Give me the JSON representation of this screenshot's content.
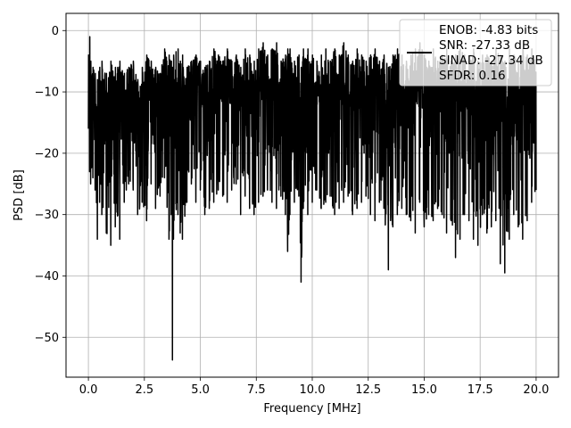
{
  "chart_data": {
    "type": "line",
    "title": "",
    "xlabel": "Frequency [MHz]",
    "ylabel": "PSD [dB]",
    "xlim": [
      -1.0,
      21.0
    ],
    "ylim": [
      -56.5,
      2.8
    ],
    "xticks": [
      0.0,
      2.5,
      5.0,
      7.5,
      10.0,
      12.5,
      15.0,
      17.5,
      20.0
    ],
    "xtick_labels": [
      "0.0",
      "2.5",
      "5.0",
      "7.5",
      "10.0",
      "12.5",
      "15.0",
      "17.5",
      "20.0"
    ],
    "yticks": [
      0,
      -10,
      -20,
      -30,
      -40,
      -50
    ],
    "ytick_labels": [
      "0",
      "−10",
      "−20",
      "−30",
      "−40",
      "−50"
    ],
    "grid": true,
    "legend_position": "top-right",
    "legend_lines": [
      "ENOB: -4.83 bits",
      "SNR: -27.33 dB",
      "SINAD: -27.34 dB",
      "SFDR: 0.16"
    ],
    "series": [
      {
        "name": "ENOB: -4.83 bits\nSNR: -27.33 dB\nSINAD: -27.34 dB\nSFDR: 0.16",
        "color": "#000000",
        "description": "dense noise PSD, approximate envelope samples (x in MHz, y in dB)",
        "x": [
          0.0,
          0.05,
          0.1,
          0.2,
          0.3,
          0.4,
          0.5,
          0.6,
          0.8,
          1.0,
          1.2,
          1.4,
          1.6,
          1.8,
          2.0,
          2.2,
          2.4,
          2.6,
          2.8,
          3.0,
          3.2,
          3.4,
          3.6,
          3.7,
          3.75,
          3.8,
          4.0,
          4.1,
          4.2,
          4.4,
          4.6,
          4.8,
          5.0,
          5.2,
          5.4,
          5.6,
          5.8,
          6.0,
          6.2,
          6.4,
          6.6,
          6.8,
          7.0,
          7.2,
          7.4,
          7.6,
          7.8,
          8.0,
          8.2,
          8.4,
          8.6,
          8.8,
          8.9,
          9.0,
          9.2,
          9.4,
          9.5,
          9.6,
          9.8,
          10.0,
          10.2,
          10.4,
          10.6,
          10.8,
          11.0,
          11.2,
          11.4,
          11.6,
          11.8,
          12.0,
          12.2,
          12.4,
          12.6,
          12.8,
          13.0,
          13.2,
          13.4,
          13.6,
          13.8,
          14.0,
          14.2,
          14.4,
          14.6,
          14.8,
          15.0,
          15.2,
          15.4,
          15.6,
          15.8,
          16.0,
          16.2,
          16.4,
          16.6,
          16.8,
          17.0,
          17.2,
          17.4,
          17.6,
          17.8,
          18.0,
          18.2,
          18.4,
          18.6,
          18.8,
          19.0,
          19.2,
          19.4,
          19.6,
          19.8,
          20.0
        ],
        "y_max": [
          -4,
          -1,
          -5,
          -6,
          -7,
          -8,
          -6,
          -5,
          -7,
          -5,
          -6,
          -5,
          -7,
          -6,
          -5,
          -8,
          -6,
          -4,
          -5,
          -6,
          -7,
          -3,
          -4,
          -5,
          -6,
          -4,
          -3,
          -5,
          -4,
          -6,
          -5,
          -4,
          -5,
          -6,
          -5,
          -3,
          -4,
          -5,
          -3,
          -5,
          -4,
          -6,
          -3,
          -4,
          -5,
          -3,
          -2,
          -4,
          -3,
          -2,
          -5,
          -4,
          -3,
          -3,
          -5,
          -4,
          -6,
          -3,
          -3,
          -4,
          -5,
          -4,
          -3,
          -5,
          -3,
          -4,
          -2,
          -4,
          -5,
          -3,
          -4,
          -5,
          -4,
          -3,
          -5,
          -4,
          -6,
          -4,
          -3,
          -4,
          -5,
          -4,
          -3,
          -2,
          -4,
          -5,
          -3,
          -5,
          -4,
          -3,
          -5,
          -4,
          -3,
          -4,
          -5,
          -3,
          -5,
          -4,
          -4,
          -5,
          -3,
          -4,
          -5,
          -3,
          -4,
          -5,
          -3,
          -4,
          -3,
          -5
        ],
        "y_min": [
          -16,
          -23,
          -25,
          -24,
          -26,
          -34,
          -28,
          -30,
          -33,
          -35,
          -32,
          -34,
          -28,
          -25,
          -26,
          -30,
          -28,
          -31,
          -25,
          -29,
          -27,
          -24,
          -34,
          -30,
          -53.7,
          -34,
          -30,
          -33,
          -34,
          -28,
          -25,
          -28,
          -26,
          -30,
          -29,
          -28,
          -26,
          -27,
          -28,
          -26,
          -25,
          -30,
          -27,
          -29,
          -30,
          -28,
          -27,
          -26,
          -28,
          -29,
          -27,
          -30,
          -36,
          -30,
          -28,
          -27,
          -41,
          -29,
          -30,
          -28,
          -26,
          -29,
          -28,
          -27,
          -30,
          -29,
          -28,
          -27,
          -30,
          -29,
          -28,
          -27,
          -30,
          -31,
          -28,
          -29,
          -39,
          -32,
          -30,
          -29,
          -30,
          -31,
          -33,
          -28,
          -32,
          -30,
          -31,
          -29,
          -30,
          -33,
          -31,
          -37,
          -34,
          -30,
          -31,
          -34,
          -35,
          -30,
          -33,
          -32,
          -31,
          -38,
          -39.5,
          -34,
          -30,
          -32,
          -34,
          -31,
          -28,
          -26
        ]
      }
    ]
  }
}
